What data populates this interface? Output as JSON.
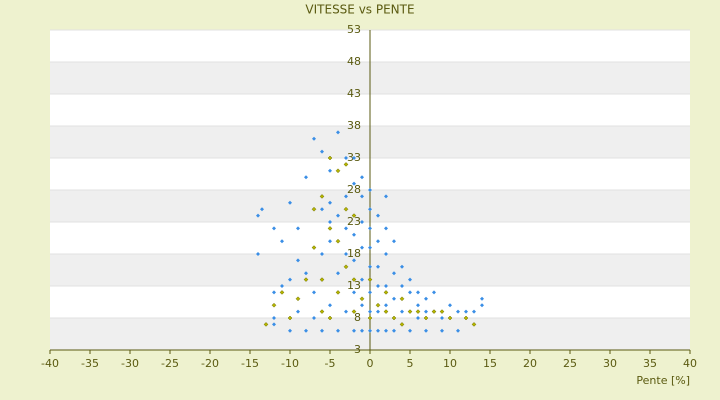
{
  "chart_data": {
    "type": "scatter",
    "title": "VITESSE vs PENTE",
    "x_label": "Pente [%]",
    "xlim": [
      -40,
      40
    ],
    "xticks": [
      -40,
      -35,
      -30,
      -25,
      -20,
      -15,
      -10,
      -5,
      0,
      5,
      10,
      15,
      20,
      25,
      30,
      35,
      40
    ],
    "ylim": [
      3,
      53
    ],
    "yticks": [
      3,
      8,
      13,
      18,
      23,
      28,
      33,
      38,
      43,
      48,
      53
    ],
    "grid": true,
    "series": [
      {
        "color": "#3a8ee6",
        "x": [
          -14,
          -13.5,
          -12,
          -14,
          -12,
          -12,
          -11,
          -10,
          -10,
          -9,
          -8,
          -7,
          -6,
          -5,
          -4,
          -3,
          -2,
          -1,
          0,
          -5,
          -4,
          -3,
          -2,
          -1,
          0,
          1,
          2,
          3,
          4,
          5,
          6,
          7,
          8,
          9,
          10,
          11,
          12,
          14,
          14,
          13,
          -8,
          -7,
          -6,
          -6,
          -5,
          -4,
          -3,
          -2,
          -1,
          0,
          1,
          2,
          3,
          1,
          2,
          3,
          4,
          5,
          6,
          7,
          -2,
          -1,
          0,
          1,
          2,
          3,
          -4,
          -6,
          -8,
          -10,
          5,
          7,
          9,
          11,
          -12,
          -9,
          -7,
          -5,
          -3,
          -1,
          0,
          0,
          1,
          -1,
          0,
          2,
          -3,
          -5,
          -9,
          -11,
          4,
          6,
          8,
          10,
          1,
          -2,
          0,
          2,
          -1,
          -2
        ],
        "values": [
          24,
          25,
          22,
          18,
          12,
          7,
          20,
          26,
          14,
          22,
          30,
          36,
          34,
          31,
          37,
          33,
          29,
          27,
          28,
          20,
          15,
          18,
          21,
          19,
          22,
          20,
          18,
          15,
          13,
          12,
          10,
          9,
          9,
          8,
          8,
          9,
          9,
          11,
          10,
          9,
          15,
          12,
          18,
          25,
          26,
          24,
          22,
          17,
          14,
          12,
          24,
          22,
          20,
          16,
          13,
          11,
          16,
          14,
          12,
          11,
          6,
          6,
          6,
          6,
          6,
          6,
          6,
          6,
          6,
          6,
          6,
          6,
          6,
          6,
          8,
          9,
          8,
          10,
          9,
          10,
          16,
          19,
          13,
          23,
          25,
          27,
          27,
          23,
          17,
          13,
          9,
          8,
          12,
          10,
          9,
          12,
          9,
          10,
          30,
          33
        ]
      },
      {
        "color": "#b5b500",
        "x": [
          -5,
          -4,
          -3,
          -6,
          -5,
          -7,
          -8,
          -9,
          -10,
          -11,
          -12,
          -13,
          -6,
          -4,
          -3,
          -2,
          -1,
          0,
          1,
          2,
          3,
          4,
          5,
          6,
          7,
          8,
          9,
          10,
          12,
          13,
          -3,
          -4,
          -2,
          -6,
          -7,
          0,
          2,
          4,
          -5,
          -2
        ],
        "values": [
          33,
          31,
          32,
          27,
          22,
          19,
          14,
          11,
          8,
          12,
          10,
          7,
          9,
          12,
          16,
          14,
          11,
          8,
          10,
          9,
          8,
          11,
          9,
          9,
          8,
          9,
          9,
          8,
          8,
          7,
          25,
          20,
          24,
          14,
          25,
          14,
          12,
          7,
          8,
          9
        ]
      }
    ]
  }
}
